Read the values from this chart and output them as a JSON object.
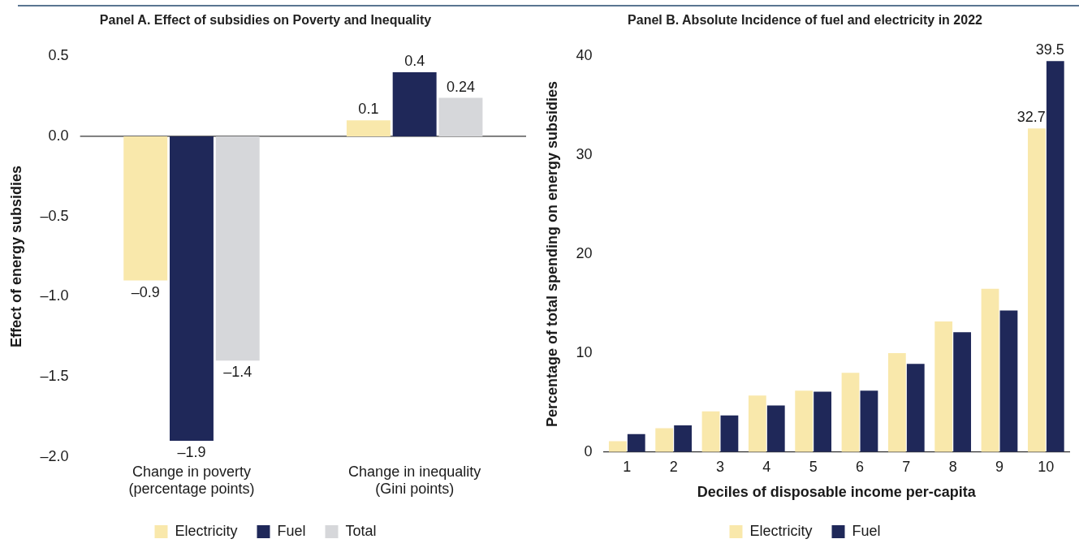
{
  "chart_data": [
    {
      "type": "bar",
      "title": "Panel A. Effect of subsidies on Poverty and Inequality",
      "ylabel": "Effect of energy subsidies",
      "categories": [
        "Change in poverty\n(percentage points)",
        "Change in inequality\n(Gini points)"
      ],
      "series": [
        {
          "name": "Electricity",
          "color": "#f9e8ab",
          "values": [
            -0.9,
            0.1
          ],
          "value_labels": [
            "–0.9",
            "0.1"
          ]
        },
        {
          "name": "Fuel",
          "color": "#1f2859",
          "values": [
            -1.9,
            0.4
          ],
          "value_labels": [
            "–1.9",
            "0.4"
          ]
        },
        {
          "name": "Total",
          "color": "#d6d7da",
          "values": [
            -1.4,
            0.24
          ],
          "value_labels": [
            "–1.4",
            "0.24"
          ]
        }
      ],
      "ylim": [
        -2,
        0.5
      ],
      "yticks": [
        {
          "value": -2,
          "label": "–2.0"
        },
        {
          "value": -1.5,
          "label": "–1.5"
        },
        {
          "value": -1,
          "label": "–1.0"
        },
        {
          "value": -0.5,
          "label": "–0.5"
        },
        {
          "value": 0,
          "label": "0.0"
        },
        0.5
      ],
      "ref_lines": [
        {
          "axis": "y",
          "value": 0,
          "color": "#333333"
        }
      ],
      "grid": false,
      "legend": "bottom"
    },
    {
      "type": "bar",
      "title": "Panel B. Absolute Incidence of fuel and electricity in 2022",
      "xlabel": "Deciles of disposable income per-capita",
      "ylabel": "Percentage of total spending on energy subsidies",
      "categories": [
        "1",
        "2",
        "3",
        "4",
        "5",
        "6",
        "7",
        "8",
        "9",
        "10"
      ],
      "series": [
        {
          "name": "Electricity",
          "color": "#f9e8ab",
          "values": [
            1.1,
            2.4,
            4.1,
            5.7,
            6.2,
            8.0,
            10.0,
            13.2,
            16.5,
            32.7
          ],
          "value_labels": [
            null,
            null,
            null,
            null,
            null,
            null,
            null,
            null,
            null,
            "32.7"
          ]
        },
        {
          "name": "Fuel",
          "color": "#1f2859",
          "values": [
            1.8,
            2.7,
            3.7,
            4.7,
            6.1,
            6.2,
            8.9,
            12.1,
            14.3,
            39.5
          ],
          "value_labels": [
            null,
            null,
            null,
            null,
            null,
            null,
            null,
            null,
            null,
            "39.5"
          ]
        }
      ],
      "ylim": [
        0,
        40
      ],
      "yticks": [
        0,
        10,
        20,
        30,
        40
      ],
      "grid": false,
      "legend": "bottom"
    }
  ]
}
